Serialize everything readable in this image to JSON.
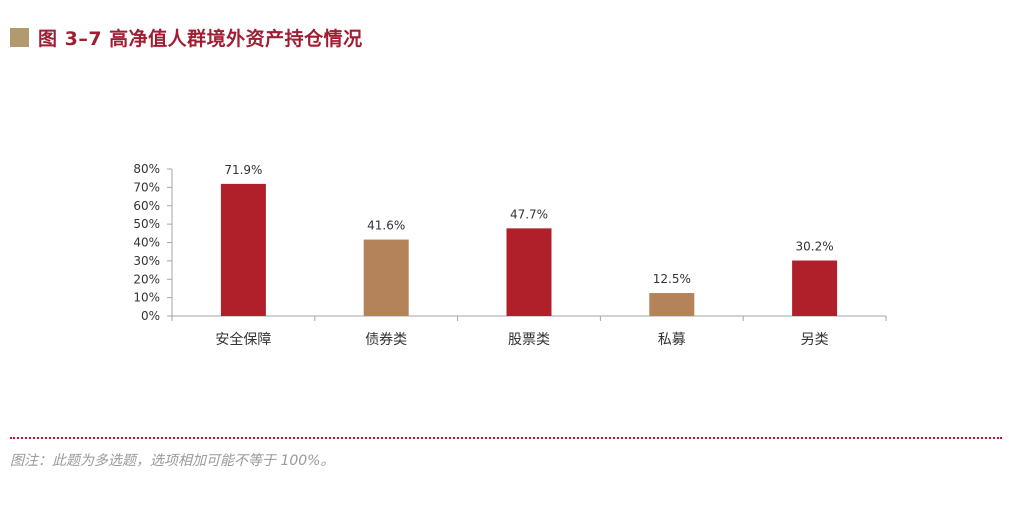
{
  "title": "图 3–7 高净值人群境外资产持仓情况",
  "note": "图注：此题为多选题，选项相加可能不等于 100%。",
  "colors": {
    "title": "#a01e33",
    "title_square": "#b09a6e",
    "red_bar": "#b0202b",
    "tan_bar": "#b5835a",
    "rule": "#c8102e"
  },
  "chart_data": {
    "type": "bar",
    "categories": [
      "安全保障",
      "债券类",
      "股票类",
      "私募",
      "另类"
    ],
    "values": [
      71.9,
      41.6,
      47.7,
      12.5,
      30.2
    ],
    "data_labels": [
      "71.9%",
      "41.6%",
      "47.7%",
      "12.5%",
      "30.2%"
    ],
    "bar_colors": [
      "red",
      "tan",
      "red",
      "tan",
      "red"
    ],
    "yticks": [
      "0%",
      "10%",
      "20%",
      "30%",
      "40%",
      "50%",
      "60%",
      "70%",
      "80%"
    ],
    "ylim": [
      0,
      80
    ],
    "grid": false,
    "legend": false
  }
}
